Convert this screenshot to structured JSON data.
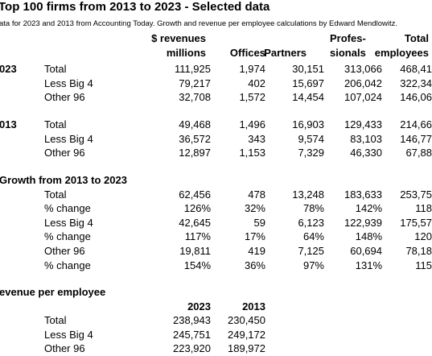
{
  "title": "Top 100 firms from 2013 to 2023 - Selected data",
  "subtitle": "ata for 2023 and 2013 from Accounting Today. Growth and revenue per employee calculations by Edward Mendlowitz.",
  "sections": [
    {
      "rows": [
        [
          null,
          null,
          "$ revenues",
          null,
          null,
          "Profes-",
          "Total"
        ],
        [
          null,
          null,
          "millions",
          "Offices",
          "Partners",
          "sionals",
          "employees"
        ]
      ]
    },
    {
      "rows": [
        [
          "023",
          "Total",
          "111,925",
          "1,974",
          "30,151",
          "313,066",
          "468,41"
        ],
        [
          null,
          "Less Big 4",
          "79,217",
          "402",
          "15,697",
          "206,042",
          "322,34"
        ],
        [
          null,
          "Other 96",
          "32,708",
          "1,572",
          "14,454",
          "107,024",
          "146,06"
        ]
      ]
    },
    {
      "rows": [
        [
          "013",
          "Total",
          "49,468",
          "1,496",
          "16,903",
          "129,433",
          "214,66"
        ],
        [
          null,
          "Less Big 4",
          "36,572",
          "343",
          "9,574",
          "83,103",
          "146,77"
        ],
        [
          null,
          "Other 96",
          "12,897",
          "1,153",
          "7,329",
          "46,330",
          "67,88"
        ]
      ]
    },
    {
      "rows": [
        [
          "Growth from 2013 to 2023",
          null,
          null,
          null,
          null,
          null,
          null
        ],
        [
          null,
          "Total",
          "62,456",
          "478",
          "13,248",
          "183,633",
          "253,75"
        ],
        [
          null,
          "% change",
          "126%",
          "32%",
          "78%",
          "142%",
          "118"
        ],
        [
          null,
          "Less Big 4",
          "42,645",
          "59",
          "6,123",
          "122,939",
          "175,57"
        ],
        [
          null,
          "% change",
          "117%",
          "17%",
          "64%",
          "148%",
          "120"
        ],
        [
          null,
          "Other 96",
          "19,811",
          "419",
          "7,125",
          "60,694",
          "78,18"
        ],
        [
          null,
          "% change",
          "154%",
          "36%",
          "97%",
          "131%",
          "115"
        ]
      ]
    },
    {
      "rows": [
        [
          "evenue per employee",
          null,
          null,
          null,
          null,
          null,
          null
        ],
        [
          null,
          null,
          "2023",
          "2013",
          null,
          null,
          null
        ],
        [
          null,
          "Total",
          "238,943",
          "230,450",
          null,
          null,
          null
        ],
        [
          null,
          "Less Big 4",
          "245,751",
          "249,172",
          null,
          null,
          null
        ],
        [
          null,
          "Other 96",
          "223,920",
          "189,972",
          null,
          null,
          null
        ]
      ]
    }
  ]
}
